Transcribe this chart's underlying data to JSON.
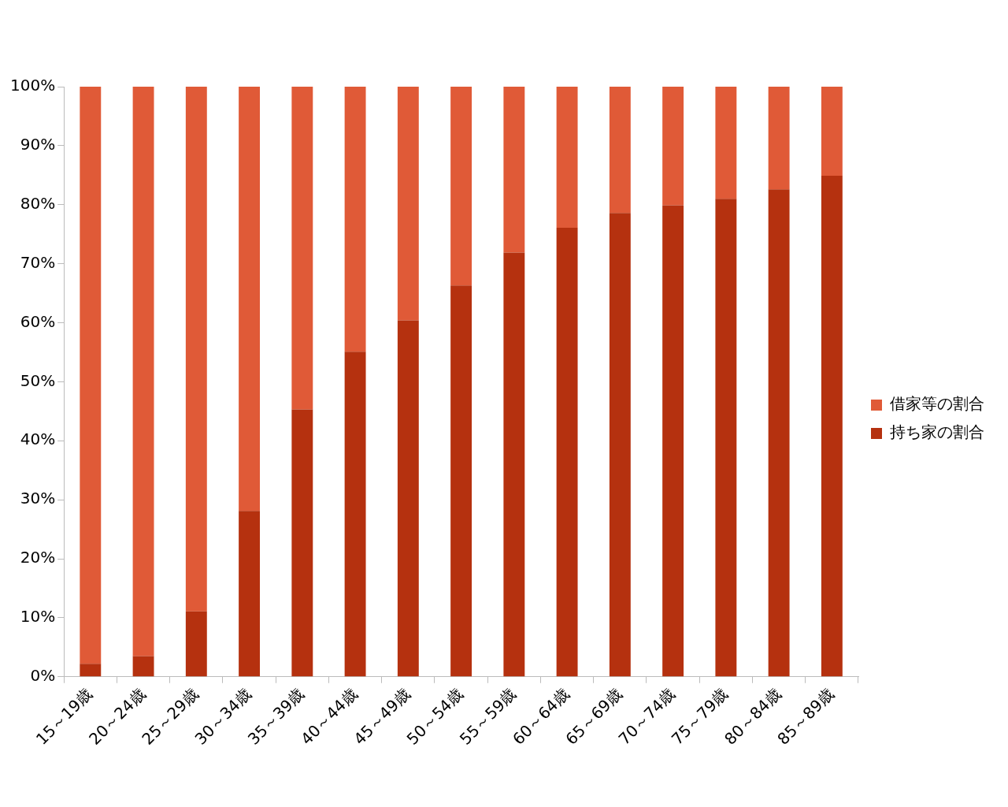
{
  "chart_data": {
    "type": "bar",
    "stacked": true,
    "categories": [
      "15～19歳",
      "20～24歳",
      "25～29歳",
      "30～34歳",
      "35～39歳",
      "40～44歳",
      "45～49歳",
      "50～54歳",
      "55～59歳",
      "60～64歳",
      "65～69歳",
      "70～74歳",
      "75～79歳",
      "80～84歳",
      "85～89歳"
    ],
    "series": [
      {
        "name": "持ち家の割合",
        "color": "#b5310f",
        "values": [
          2.2,
          3.5,
          11.1,
          28.1,
          45.3,
          55.1,
          60.4,
          66.3,
          71.9,
          76.1,
          78.6,
          79.9,
          81.0,
          82.6,
          84.9
        ]
      },
      {
        "name": "借家等の割合",
        "color": "#e05a37",
        "values": [
          97.8,
          96.5,
          88.9,
          71.9,
          54.7,
          44.9,
          39.6,
          33.7,
          28.1,
          23.9,
          21.4,
          20.1,
          19.0,
          17.4,
          15.1
        ]
      }
    ],
    "ylim": [
      0,
      100
    ],
    "yticks": [
      {
        "value": 0,
        "label": "0%"
      },
      {
        "value": 10,
        "label": "10%"
      },
      {
        "value": 20,
        "label": "20%"
      },
      {
        "value": 30,
        "label": "30%"
      },
      {
        "value": 40,
        "label": "40%"
      },
      {
        "value": 50,
        "label": "50%"
      },
      {
        "value": 60,
        "label": "60%"
      },
      {
        "value": 70,
        "label": "70%"
      },
      {
        "value": 80,
        "label": "80%"
      },
      {
        "value": 90,
        "label": "90%"
      },
      {
        "value": 100,
        "label": "100%"
      }
    ],
    "grid": false,
    "legend": "right"
  }
}
